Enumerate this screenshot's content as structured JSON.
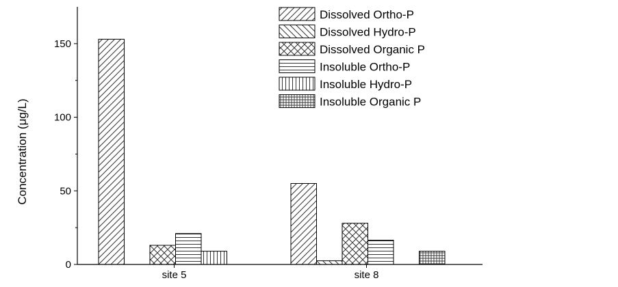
{
  "chart_data": {
    "type": "bar",
    "ylabel": "Concentration (μg/L)",
    "xlabel": "",
    "ylim": [
      0,
      175
    ],
    "yticks": [
      0,
      50,
      100,
      150
    ],
    "categories": [
      "site 5",
      "site 8"
    ],
    "legend_position": "top-right",
    "series": [
      {
        "name": "Dissolved Ortho-P",
        "pattern": "diag-forward",
        "values": [
          153,
          55
        ]
      },
      {
        "name": "Dissolved Hydro-P",
        "pattern": "diag-backward",
        "values": [
          0,
          2.5
        ]
      },
      {
        "name": "Dissolved Organic P",
        "pattern": "crosshatch",
        "values": [
          13,
          28
        ]
      },
      {
        "name": "Insoluble Ortho-P",
        "pattern": "horizontal",
        "values": [
          21,
          16.5
        ]
      },
      {
        "name": "Insoluble Hydro-P",
        "pattern": "vertical",
        "values": [
          9,
          0
        ]
      },
      {
        "name": "Insoluble Organic P",
        "pattern": "grid",
        "values": [
          0,
          9
        ]
      }
    ]
  }
}
